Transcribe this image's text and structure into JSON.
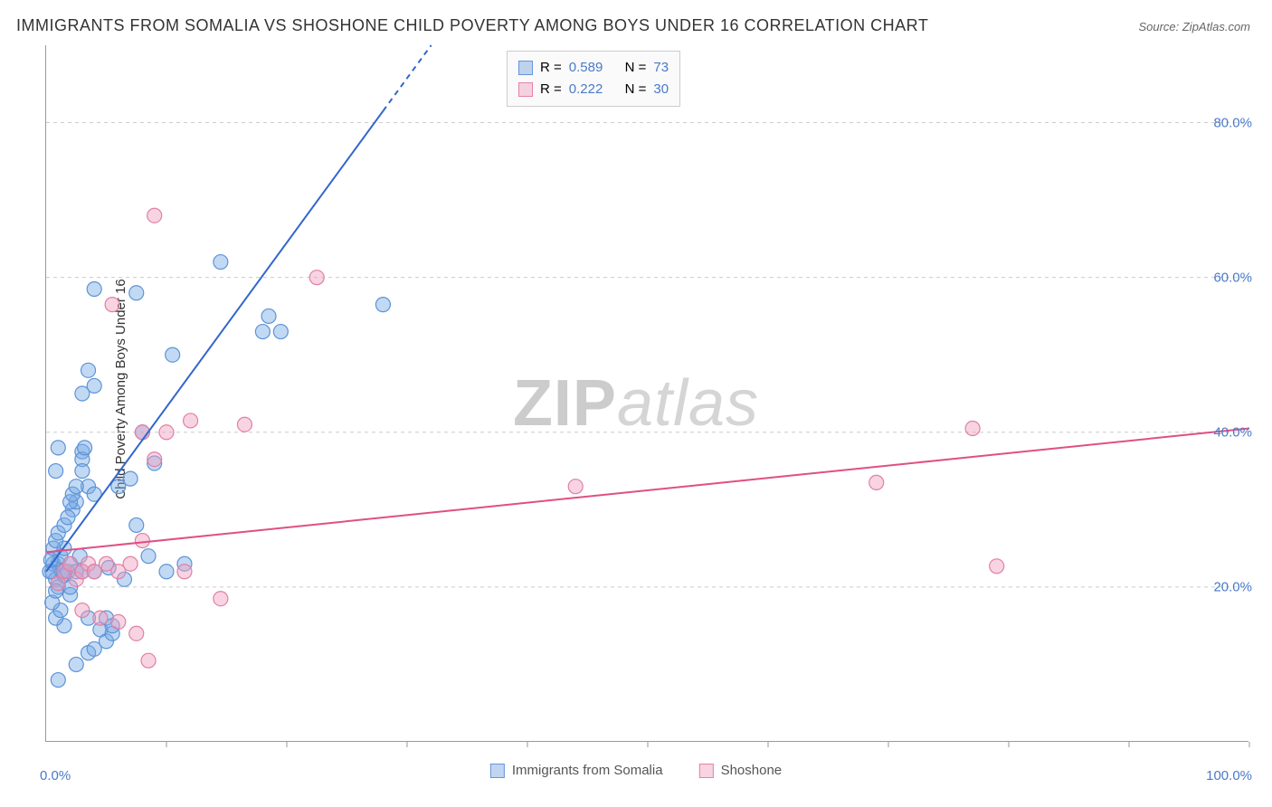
{
  "title": "IMMIGRANTS FROM SOMALIA VS SHOSHONE CHILD POVERTY AMONG BOYS UNDER 16 CORRELATION CHART",
  "source": "Source: ZipAtlas.com",
  "watermark_a": "ZIP",
  "watermark_b": "atlas",
  "chart": {
    "type": "scatter",
    "ylabel": "Child Poverty Among Boys Under 16",
    "xlim": [
      0,
      100
    ],
    "ylim": [
      0,
      90
    ],
    "xtick_positions": [
      0,
      10,
      20,
      30,
      40,
      50,
      60,
      70,
      80,
      90,
      100
    ],
    "ytick_values": [
      20,
      40,
      60,
      80
    ],
    "ytick_labels": [
      "20.0%",
      "40.0%",
      "60.0%",
      "80.0%"
    ],
    "x_origin_label": "0.0%",
    "x_max_label": "100.0%",
    "background_color": "#ffffff",
    "grid_color": "#cccccc",
    "marker_radius": 8,
    "marker_stroke_width": 1.2,
    "line_width": 2,
    "series": [
      {
        "name": "Immigrants from Somalia",
        "color_fill": "rgba(120,170,230,0.45)",
        "color_stroke": "#5d93d6",
        "line_color": "#3366cc",
        "R": "0.589",
        "N": "73",
        "trend": {
          "x1": 0,
          "y1": 22,
          "x2": 32,
          "y2": 90,
          "dash_from_x": 28
        },
        "points": [
          [
            0.5,
            22
          ],
          [
            0.6,
            23
          ],
          [
            0.8,
            21
          ],
          [
            1.0,
            20
          ],
          [
            1.0,
            23
          ],
          [
            1.2,
            24
          ],
          [
            1.3,
            22
          ],
          [
            1.5,
            21.5
          ],
          [
            1.5,
            25
          ],
          [
            1.8,
            22
          ],
          [
            2.0,
            23
          ],
          [
            2.0,
            19
          ],
          [
            2.2,
            30
          ],
          [
            2.5,
            22
          ],
          [
            2.5,
            31
          ],
          [
            2.8,
            24
          ],
          [
            3.0,
            22
          ],
          [
            3.0,
            37.5
          ],
          [
            3.0,
            36.5
          ],
          [
            3.2,
            38
          ],
          [
            3.5,
            33
          ],
          [
            3.5,
            16
          ],
          [
            4.0,
            22
          ],
          [
            4.0,
            32
          ],
          [
            4.5,
            14.5
          ],
          [
            5.0,
            16
          ],
          [
            5.0,
            13
          ],
          [
            5.2,
            22.5
          ],
          [
            5.5,
            14
          ],
          [
            3.0,
            45
          ],
          [
            6.0,
            33
          ],
          [
            6.5,
            21
          ],
          [
            7.0,
            34
          ],
          [
            7.5,
            28
          ],
          [
            8.0,
            40
          ],
          [
            8.5,
            24
          ],
          [
            9.0,
            36
          ],
          [
            10.0,
            22
          ],
          [
            11.5,
            23
          ],
          [
            4.0,
            58.5
          ],
          [
            7.5,
            58
          ],
          [
            10.5,
            50
          ],
          [
            14.5,
            62
          ],
          [
            18,
            53
          ],
          [
            18.5,
            55
          ],
          [
            19.5,
            53
          ],
          [
            28,
            56.5
          ],
          [
            1.0,
            8
          ],
          [
            2.5,
            10
          ],
          [
            3.5,
            11.5
          ],
          [
            4.0,
            12
          ],
          [
            5.5,
            15
          ],
          [
            1.5,
            15
          ],
          [
            0.8,
            16
          ],
          [
            1.2,
            17
          ],
          [
            0.5,
            18
          ],
          [
            0.8,
            19.5
          ],
          [
            2.0,
            20
          ],
          [
            0.3,
            22
          ],
          [
            0.4,
            23.5
          ],
          [
            0.6,
            25
          ],
          [
            0.8,
            26
          ],
          [
            1.0,
            27
          ],
          [
            1.5,
            28
          ],
          [
            1.8,
            29
          ],
          [
            2.0,
            31
          ],
          [
            2.2,
            32
          ],
          [
            2.5,
            33
          ],
          [
            3.0,
            35
          ],
          [
            1.0,
            38
          ],
          [
            0.8,
            35
          ],
          [
            3.5,
            48
          ],
          [
            4.0,
            46
          ]
        ]
      },
      {
        "name": "Shoshone",
        "color_fill": "rgba(240,160,190,0.45)",
        "color_stroke": "#e07fa5",
        "line_color": "#e04f84",
        "R": "0.222",
        "N": "30",
        "trend": {
          "x1": 0,
          "y1": 24.5,
          "x2": 100,
          "y2": 40.5
        },
        "points": [
          [
            1.0,
            20.5
          ],
          [
            1.5,
            22
          ],
          [
            2.0,
            23
          ],
          [
            2.5,
            21
          ],
          [
            3.0,
            22
          ],
          [
            3.5,
            23
          ],
          [
            4.0,
            22
          ],
          [
            5.0,
            23
          ],
          [
            6.0,
            22
          ],
          [
            7.0,
            23
          ],
          [
            8.0,
            26
          ],
          [
            9.0,
            36.5
          ],
          [
            10.0,
            40
          ],
          [
            11.5,
            22
          ],
          [
            14.5,
            18.5
          ],
          [
            6.0,
            15.5
          ],
          [
            7.5,
            14
          ],
          [
            8.5,
            10.5
          ],
          [
            5.5,
            56.5
          ],
          [
            8.0,
            40
          ],
          [
            22.5,
            60
          ],
          [
            9.0,
            68
          ],
          [
            12.0,
            41.5
          ],
          [
            16.5,
            41
          ],
          [
            44,
            33
          ],
          [
            69,
            33.5
          ],
          [
            79,
            22.7
          ],
          [
            77,
            40.5
          ],
          [
            3.0,
            17
          ],
          [
            4.5,
            16
          ]
        ]
      }
    ]
  },
  "legend": {
    "series1_label": "Immigrants from Somalia",
    "series2_label": "Shoshone",
    "R_label": "R =",
    "N_label": "N ="
  }
}
